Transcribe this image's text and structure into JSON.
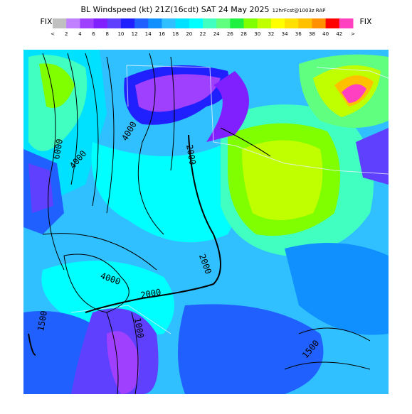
{
  "header": {
    "title": "BL Windspeed (kt) 21Z(16cdt) SAT 24 May 2025",
    "subtitle": "12hrFcst@1003z RAP",
    "fix_left": "FIX",
    "fix_right": "FIX"
  },
  "colorbar": {
    "colors": [
      "#c0c0c0",
      "#c080ff",
      "#a040ff",
      "#8020ff",
      "#6040ff",
      "#2020ff",
      "#2060ff",
      "#1090ff",
      "#30c0ff",
      "#00e0ff",
      "#00ffff",
      "#40ffc0",
      "#60ff80",
      "#20f040",
      "#80ff00",
      "#c0ff00",
      "#ffff00",
      "#ffe000",
      "#ffc000",
      "#ff9000",
      "#ff0000",
      "#ff40c0"
    ],
    "labels": [
      "<",
      "2",
      "4",
      "6",
      "8",
      "10",
      "12",
      "14",
      "16",
      "18",
      "20",
      "22",
      "24",
      "26",
      "28",
      "30",
      "32",
      "34",
      "36",
      "38",
      "40",
      "42",
      ">"
    ]
  },
  "map": {
    "contour_labels": [
      "6000",
      "4000",
      "4000",
      "2000",
      "2000",
      "4000",
      "2000",
      "1500",
      "1000",
      "1500"
    ]
  }
}
